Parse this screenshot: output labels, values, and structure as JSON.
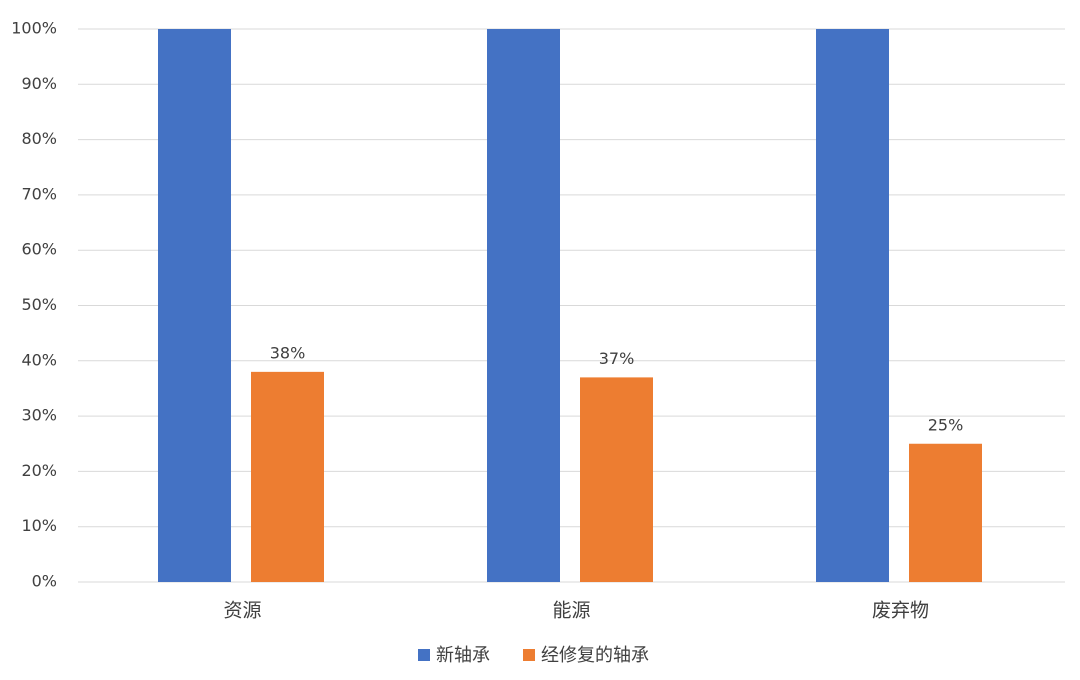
{
  "chart_data": {
    "type": "bar",
    "categories": [
      "资源",
      "能源",
      "废弃物"
    ],
    "series": [
      {
        "name": "新轴承",
        "color": "#4472c4",
        "values": [
          100,
          100,
          100
        ]
      },
      {
        "name": "经修复的轴承",
        "color": "#ed7d31",
        "values": [
          38,
          37,
          25
        ],
        "value_labels": [
          "38%",
          "37%",
          "25%"
        ]
      }
    ],
    "ylim": [
      0,
      100
    ],
    "yticks": [
      {
        "value": 0,
        "label": "0%"
      },
      {
        "value": 10,
        "label": "10%"
      },
      {
        "value": 20,
        "label": "20%"
      },
      {
        "value": 30,
        "label": "30%"
      },
      {
        "value": 40,
        "label": "40%"
      },
      {
        "value": 50,
        "label": "50%"
      },
      {
        "value": 60,
        "label": "60%"
      },
      {
        "value": 70,
        "label": "70%"
      },
      {
        "value": 80,
        "label": "80%"
      },
      {
        "value": 90,
        "label": "90%"
      },
      {
        "value": 100,
        "label": "100%"
      }
    ],
    "grid": true,
    "legend": "bottom"
  }
}
